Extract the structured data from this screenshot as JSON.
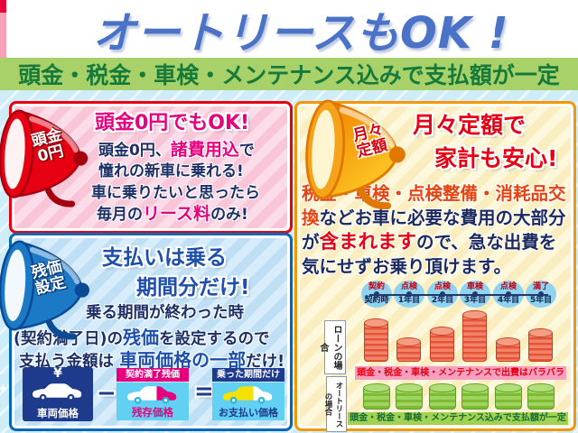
{
  "header": {
    "title": "オートリースもOK !",
    "subtitle": "頭金・税金・車検・メンテナンス込みで支払額が一定"
  },
  "colors": {
    "title_blue": "#4a73c8",
    "subtitle_bg": "#a9d16a",
    "subtitle_text": "#157a3a",
    "magenta_accent": "#e6007e",
    "red_accent": "#e60012",
    "blue_accent": "#1d4fae",
    "orange_accent": "#f39800",
    "navy_text": "#1c2f66",
    "loan_coin": "#ec6a4e",
    "lease_coin": "#8dc63f"
  },
  "panels": {
    "zero_down": {
      "badge": [
        "頭金",
        "0円"
      ],
      "heading": "頭金0円でもOK!",
      "line1_pre": "頭金0円、",
      "line1_em": "諸費用込",
      "line1_post": "で",
      "line2": "憧れの新車に乗れる!",
      "line3": "車に乗りたいと思ったら",
      "line4_pre": "毎月の",
      "line4_em": "リース料",
      "line4_post": "のみ!"
    },
    "residual": {
      "badge": [
        "残価",
        "設定"
      ],
      "heading_line1": "支払いは乗る",
      "heading_line2": "期間分だけ!",
      "line1": "乗る期間が終わった時",
      "line2_pre": "(契約満了日)の",
      "line2_em": "残価",
      "line2_post": "を設定するので",
      "line3_pre": "支払う金額は",
      "line3_em": "車両価格の一部",
      "line3_post": "だけ!",
      "diagram": {
        "vehicle": {
          "currency": "¥",
          "label": "車両価格"
        },
        "minus": "−",
        "residual": {
          "tag": "契約満了残価",
          "label": "残存価格"
        },
        "equals": "=",
        "payment": {
          "tag": "乗った期間だけ",
          "label": "お支払い価格"
        }
      }
    },
    "fixed_monthly": {
      "badge": [
        "月々",
        "定額"
      ],
      "heading_line1": "月々定額で",
      "heading_line2": "家計も安心!",
      "body_em1": "税金・車検・点検整備・消耗品交換",
      "body_mid": "などお車に必要な費用の大部分が",
      "body_em2": "含まれます",
      "body_end": "ので、急な出費を気にせずお乗り頂けます。"
    }
  },
  "chart_data": {
    "type": "bar",
    "timeline": [
      {
        "event": "契約",
        "time": "契約時"
      },
      {
        "event": "点検",
        "time": "1年目"
      },
      {
        "event": "点検",
        "time": "2年目"
      },
      {
        "event": "車検",
        "time": "3年目"
      },
      {
        "event": "点検",
        "time": "4年目"
      },
      {
        "event": "満了",
        "time": "5年目"
      }
    ],
    "series": [
      {
        "name": "ローンの場合",
        "values": [
          45,
          24,
          36,
          54,
          24,
          34
        ],
        "unit": "relative-expense",
        "color": "#ec6a4e",
        "caption": "頭金・税金・車検・メンテナンスで出費はバラバラ"
      },
      {
        "name": "オートリースの場合",
        "values": [
          26,
          26,
          26,
          26,
          26,
          26
        ],
        "unit": "relative-expense",
        "color": "#8dc63f",
        "caption": "頭金・税金・車検・メンテナンス込みで支払額が一定"
      }
    ],
    "legend_position": "left",
    "grid": false
  }
}
